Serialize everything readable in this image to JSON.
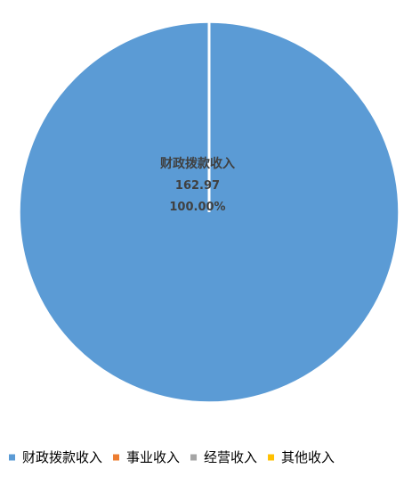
{
  "chart_data": {
    "type": "pie",
    "title": "",
    "categories": [
      "财政拨款收入",
      "事业收入",
      "经营收入",
      "其他收入"
    ],
    "values": [
      162.97,
      0,
      0,
      0
    ],
    "colors": [
      "#5B9BD5",
      "#ED7D31",
      "#A5A5A5",
      "#FFC000"
    ],
    "data_labels": [
      {
        "category": "财政拨款收入",
        "value_text": "162.97",
        "percent_text": "100.00%"
      }
    ],
    "legend": {
      "position": "bottom",
      "entries": [
        "财政拨款收入",
        "事业收入",
        "经营收入",
        "其他收入"
      ]
    }
  }
}
